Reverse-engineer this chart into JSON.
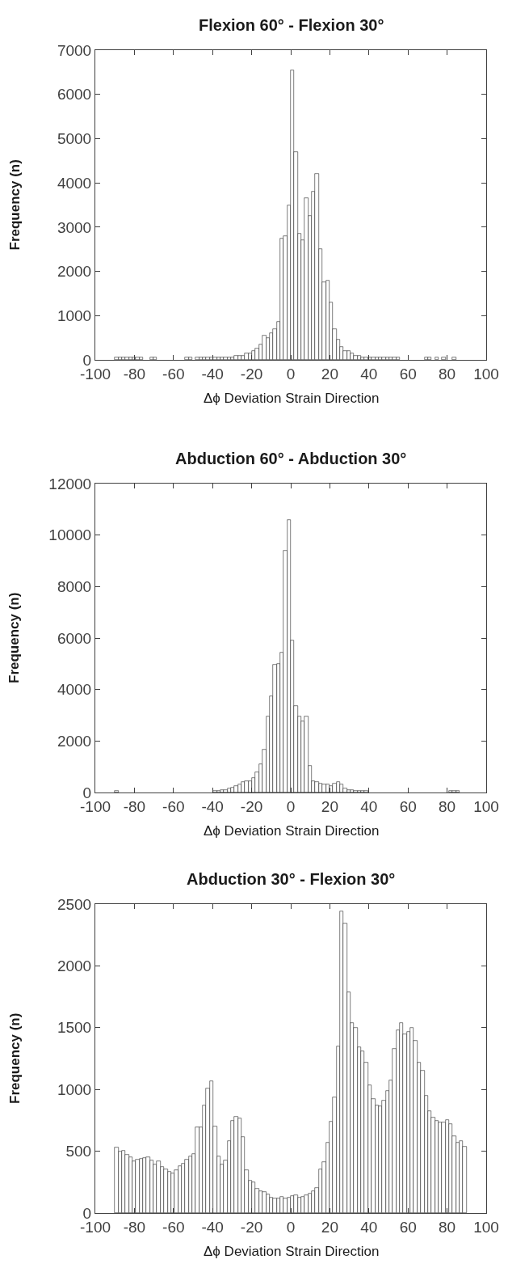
{
  "chart_data": [
    {
      "type": "histogram",
      "title": "Flexion 60° - Flexion 30°",
      "xlabel": "Δϕ Deviation Strain Direction",
      "ylabel": "Frequency (n)",
      "color": "#ffffff",
      "bins": [
        -90,
        -88.2,
        -86.4,
        -84.6,
        -82.8,
        -81,
        -79.2,
        -77.4,
        -75.6,
        -73.8,
        -72,
        -70.2,
        -68.4,
        -66.6,
        -64.8,
        -63,
        -61.2,
        -59.4,
        -57.6,
        -55.8,
        -54,
        -52.2,
        -50.4,
        -48.6,
        -46.8,
        -45,
        -43.2,
        -41.4,
        -39.6,
        -37.8,
        -36,
        -34.2,
        -32.4,
        -30.6,
        -28.8,
        -27,
        -25.2,
        -23.4,
        -21.6,
        -19.8,
        -18,
        -16.2,
        -14.4,
        -12.6,
        -10.8,
        -9,
        -7.2,
        -5.4,
        -3.6,
        -1.8,
        0,
        1.8,
        3.6,
        5.4,
        7.2,
        9,
        10.8,
        12.6,
        14.4,
        16.2,
        18,
        19.8,
        21.6,
        23.4,
        25.2,
        27,
        28.8,
        30.6,
        32.4,
        34.2,
        36,
        37.8,
        39.6,
        41.4,
        43.2,
        45,
        46.8,
        48.6,
        50.4,
        52.2,
        54,
        55.8,
        57.6,
        59.4,
        61.2,
        63,
        64.8,
        66.6,
        68.4,
        70.2,
        72,
        73.8,
        75.6,
        77.4,
        79.2,
        81,
        82.8,
        84.6,
        86.4,
        88.2,
        90
      ],
      "values": [
        50,
        50,
        50,
        50,
        50,
        50,
        50,
        50,
        0,
        0,
        50,
        50,
        0,
        0,
        0,
        0,
        0,
        0,
        0,
        0,
        50,
        50,
        0,
        50,
        50,
        50,
        50,
        50,
        50,
        50,
        50,
        50,
        50,
        50,
        100,
        100,
        100,
        150,
        150,
        200,
        250,
        350,
        550,
        500,
        600,
        700,
        850,
        2750,
        2800,
        3500,
        6550,
        4700,
        2850,
        2700,
        3650,
        3250,
        3800,
        4200,
        2500,
        1750,
        1800,
        1300,
        700,
        450,
        300,
        200,
        200,
        150,
        100,
        100,
        50,
        50,
        50,
        50,
        50,
        50,
        50,
        50,
        50,
        50,
        50,
        0,
        0,
        0,
        0,
        0,
        0,
        0,
        50,
        50,
        0,
        50,
        0,
        50,
        0,
        0,
        50,
        0,
        0,
        0
      ],
      "xlim": [
        -100,
        100
      ],
      "xticks": [
        -100,
        -80,
        -60,
        -40,
        -20,
        0,
        20,
        40,
        60,
        80,
        100
      ],
      "ylim": [
        0,
        7000
      ],
      "yticks": [
        0,
        1000,
        2000,
        3000,
        4000,
        5000,
        6000,
        7000
      ]
    },
    {
      "type": "histogram",
      "title": "Abduction 60° - Abduction 30°",
      "xlabel": "Δϕ Deviation Strain Direction",
      "ylabel": "Frequency (n)",
      "color": "#ffffff",
      "bins": [
        -90,
        -88.2,
        -86.4,
        -84.6,
        -82.8,
        -81,
        -79.2,
        -77.4,
        -75.6,
        -73.8,
        -72,
        -70.2,
        -68.4,
        -66.6,
        -64.8,
        -63,
        -61.2,
        -59.4,
        -57.6,
        -55.8,
        -54,
        -52.2,
        -50.4,
        -48.6,
        -46.8,
        -45,
        -43.2,
        -41.4,
        -39.6,
        -37.8,
        -36,
        -34.2,
        -32.4,
        -30.6,
        -28.8,
        -27,
        -25.2,
        -23.4,
        -21.6,
        -19.8,
        -18,
        -16.2,
        -14.4,
        -12.6,
        -10.8,
        -9,
        -7.2,
        -5.4,
        -3.6,
        -1.8,
        0,
        1.8,
        3.6,
        5.4,
        7.2,
        9,
        10.8,
        12.6,
        14.4,
        16.2,
        18,
        19.8,
        21.6,
        23.4,
        25.2,
        27,
        28.8,
        30.6,
        32.4,
        34.2,
        36,
        37.8,
        39.6,
        41.4,
        43.2,
        45,
        46.8,
        48.6,
        50.4,
        52.2,
        54,
        55.8,
        57.6,
        59.4,
        61.2,
        63,
        64.8,
        66.6,
        68.4,
        70.2,
        72,
        73.8,
        75.6,
        77.4,
        79.2,
        81,
        82.8,
        84.6,
        86.4,
        88.2,
        90
      ],
      "values": [
        50,
        0,
        0,
        0,
        0,
        0,
        0,
        0,
        0,
        0,
        0,
        0,
        0,
        0,
        0,
        0,
        0,
        0,
        0,
        0,
        0,
        0,
        0,
        0,
        0,
        0,
        0,
        0,
        50,
        50,
        100,
        100,
        150,
        200,
        250,
        300,
        400,
        450,
        450,
        550,
        800,
        1100,
        1650,
        2950,
        3750,
        4950,
        5000,
        5450,
        9400,
        10600,
        5900,
        3350,
        2950,
        2750,
        2950,
        1050,
        450,
        400,
        350,
        300,
        300,
        250,
        350,
        400,
        300,
        150,
        100,
        100,
        50,
        50,
        50,
        50,
        0,
        0,
        0,
        0,
        0,
        0,
        0,
        0,
        0,
        0,
        0,
        0,
        0,
        0,
        0,
        0,
        0,
        0,
        0,
        0,
        0,
        0,
        0,
        50,
        50,
        50,
        0,
        0
      ],
      "xlim": [
        -100,
        100
      ],
      "xticks": [
        -100,
        -80,
        -60,
        -40,
        -20,
        0,
        20,
        40,
        60,
        80,
        100
      ],
      "ylim": [
        0,
        12000
      ],
      "yticks": [
        0,
        2000,
        4000,
        6000,
        8000,
        10000,
        12000
      ]
    },
    {
      "type": "histogram",
      "title": "Abduction 30° - Flexion 30°",
      "xlabel": "Δϕ Deviation Strain Direction",
      "ylabel": "Frequency (n)",
      "color": "#ffffff",
      "bins": [
        -90,
        -88.2,
        -86.4,
        -84.6,
        -82.8,
        -81,
        -79.2,
        -77.4,
        -75.6,
        -73.8,
        -72,
        -70.2,
        -68.4,
        -66.6,
        -64.8,
        -63,
        -61.2,
        -59.4,
        -57.6,
        -55.8,
        -54,
        -52.2,
        -50.4,
        -48.6,
        -46.8,
        -45,
        -43.2,
        -41.4,
        -39.6,
        -37.8,
        -36,
        -34.2,
        -32.4,
        -30.6,
        -28.8,
        -27,
        -25.2,
        -23.4,
        -21.6,
        -19.8,
        -18,
        -16.2,
        -14.4,
        -12.6,
        -10.8,
        -9,
        -7.2,
        -5.4,
        -3.6,
        -1.8,
        0,
        1.8,
        3.6,
        5.4,
        7.2,
        9,
        10.8,
        12.6,
        14.4,
        16.2,
        18,
        19.8,
        21.6,
        23.4,
        25.2,
        27,
        28.8,
        30.6,
        32.4,
        34.2,
        36,
        37.8,
        39.6,
        41.4,
        43.2,
        45,
        46.8,
        48.6,
        50.4,
        52.2,
        54,
        55.8,
        57.6,
        59.4,
        61.2,
        63,
        64.8,
        66.6,
        68.4,
        70.2,
        72,
        73.8,
        75.6,
        77.4,
        79.2,
        81,
        82.8,
        84.6,
        86.4,
        88.2,
        90
      ],
      "values": [
        530,
        495,
        505,
        470,
        450,
        420,
        435,
        440,
        445,
        450,
        425,
        395,
        420,
        370,
        355,
        335,
        320,
        350,
        380,
        400,
        430,
        455,
        480,
        695,
        695,
        870,
        1010,
        1065,
        700,
        460,
        390,
        425,
        585,
        745,
        780,
        765,
        615,
        345,
        265,
        250,
        195,
        180,
        170,
        150,
        125,
        115,
        120,
        130,
        120,
        125,
        135,
        145,
        125,
        130,
        145,
        160,
        180,
        205,
        355,
        415,
        570,
        740,
        935,
        1345,
        2440,
        2345,
        1785,
        1535,
        1500,
        1340,
        1310,
        1215,
        1035,
        925,
        870,
        865,
        910,
        985,
        1075,
        1330,
        1480,
        1535,
        1445,
        1465,
        1500,
        1395,
        1215,
        1150,
        950,
        825,
        775,
        745,
        735,
        735,
        750,
        720,
        620,
        570,
        580,
        535
      ],
      "xlim": [
        -100,
        100
      ],
      "xticks": [
        -100,
        -80,
        -60,
        -40,
        -20,
        0,
        20,
        40,
        60,
        80,
        100
      ],
      "ylim": [
        0,
        2500
      ],
      "yticks": [
        0,
        500,
        1000,
        1500,
        2000,
        2500
      ]
    }
  ]
}
